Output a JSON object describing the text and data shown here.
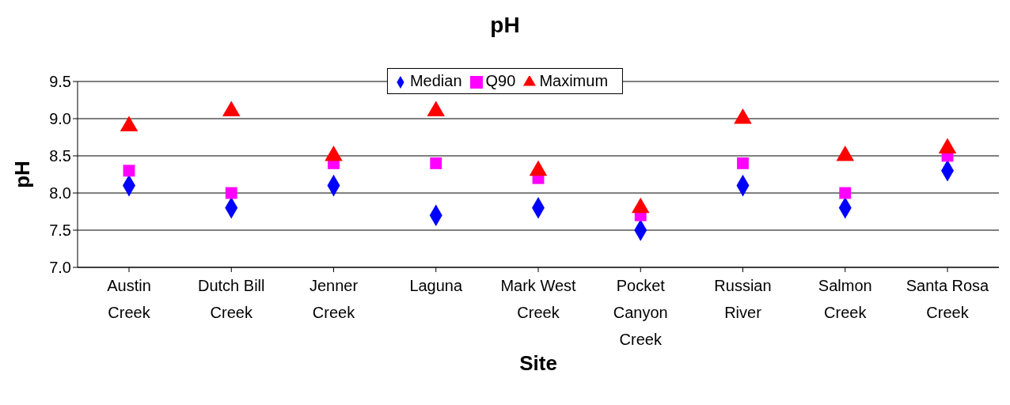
{
  "chart_data": {
    "type": "scatter",
    "title": "pH",
    "xlabel": "Site",
    "ylabel": "pH",
    "categories": [
      "Austin Creek",
      "Dutch Bill Creek",
      "Jenner Creek",
      "Laguna",
      "Mark West Creek",
      "Pocket Canyon Creek",
      "Russian River",
      "Salmon Creek",
      "Santa Rosa Creek"
    ],
    "series": [
      {
        "name": "Median",
        "color": "#0000ff",
        "marker": "diamond",
        "values": [
          8.1,
          7.8,
          8.1,
          7.7,
          7.8,
          7.5,
          8.1,
          7.8,
          8.3
        ]
      },
      {
        "name": "Q90",
        "color": "#ff00ff",
        "marker": "square",
        "values": [
          8.3,
          8.0,
          8.4,
          8.4,
          8.2,
          7.7,
          8.4,
          8.0,
          8.5
        ]
      },
      {
        "name": "Maximum",
        "color": "#ff0000",
        "marker": "triangle",
        "values": [
          8.9,
          9.1,
          8.5,
          9.1,
          8.3,
          7.8,
          9.0,
          8.5,
          8.6
        ]
      }
    ],
    "ylim": [
      7.0,
      9.5
    ],
    "yticks": [
      {
        "value": 7.0,
        "label": "7.0"
      },
      {
        "value": 7.5,
        "label": "7.5"
      },
      {
        "value": 8.0,
        "label": "8.0"
      },
      {
        "value": 8.5,
        "label": "8.5"
      },
      {
        "value": 9.0,
        "label": "9.0"
      },
      {
        "value": 9.5,
        "label": "9.5"
      }
    ],
    "grid": "y",
    "legend": "top"
  }
}
